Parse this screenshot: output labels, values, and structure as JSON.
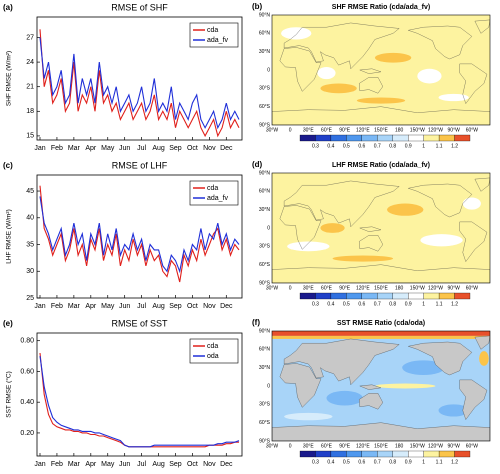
{
  "chart_data": [
    {
      "type": "line",
      "label": "(a)",
      "title": "RMSE of SHF",
      "ylabel": "SHF RMSE (W/m²)",
      "categories": [
        "Jan",
        null,
        null,
        null,
        "Feb",
        null,
        null,
        null,
        "Mar",
        null,
        null,
        null,
        "Apr",
        null,
        null,
        null,
        "May",
        null,
        null,
        null,
        "Jun",
        null,
        null,
        null,
        "Jul",
        null,
        null,
        null,
        "Aug",
        null,
        null,
        null,
        "Sep",
        null,
        null,
        null,
        "Oct",
        null,
        null,
        null,
        "Nov",
        null,
        null,
        null,
        "Dec",
        null,
        null,
        null
      ],
      "series": [
        {
          "name": "cda",
          "color": "#e0201b",
          "values": [
            28,
            21,
            23,
            19,
            20,
            22,
            18,
            19,
            24,
            18,
            20,
            19,
            21,
            18,
            23,
            19,
            20,
            18,
            19,
            17,
            18,
            19,
            17,
            18,
            19,
            17,
            18,
            20,
            17,
            18,
            17,
            19,
            16,
            18,
            17,
            16,
            17,
            18,
            16,
            15,
            16,
            17,
            15,
            16,
            18,
            16,
            17,
            16
          ]
        },
        {
          "name": "ada_fv",
          "color": "#1f2fd8",
          "values": [
            27,
            22,
            24,
            20,
            21,
            23,
            19,
            20,
            25,
            19,
            22,
            20,
            22,
            19,
            24,
            20,
            21,
            19,
            21,
            18,
            19,
            20,
            18,
            19,
            21,
            18,
            19,
            22,
            18,
            19,
            18,
            21,
            17,
            19,
            18,
            17,
            19,
            20,
            17,
            16,
            17,
            18,
            16,
            17,
            19,
            17,
            18,
            17
          ]
        }
      ],
      "ylim": [
        14.5,
        29.5
      ],
      "yticks": [
        15,
        18,
        21,
        24,
        27
      ],
      "legend": "upper right"
    },
    {
      "type": "map",
      "label": "(b)",
      "title": "SHF RMSE Ratio (cda/ada_fv)",
      "field_color": "#fdf3a0",
      "lat_labels": [
        "90°N",
        "60°N",
        "30°N",
        "0",
        "30°S",
        "60°S",
        "90°S"
      ],
      "lon_labels": [
        "30°W",
        "0",
        "30°E",
        "60°E",
        "90°E",
        "120°E",
        "150°E",
        "180",
        "150°W",
        "120°W",
        "90°W",
        "60°W"
      ],
      "colorbar": {
        "ticks": [
          0.3,
          0.4,
          0.5,
          0.6,
          0.7,
          0.8,
          0.9,
          1,
          1.1,
          1.2
        ],
        "colors": [
          "#1a1a8c",
          "#2040c8",
          "#3070e0",
          "#4f98ee",
          "#7ab8f5",
          "#a8d4f8",
          "#d6ecfb",
          "#ffffff",
          "#fdf3a0",
          "#fbc44a",
          "#e8502a"
        ]
      }
    },
    {
      "type": "line",
      "label": "(c)",
      "title": "RMSE of LHF",
      "ylabel": "LHF RMSE (W/m²)",
      "categories": [
        "Jan",
        null,
        null,
        null,
        "Feb",
        null,
        null,
        null,
        "Mar",
        null,
        null,
        null,
        "Apr",
        null,
        null,
        null,
        "May",
        null,
        null,
        null,
        "Jun",
        null,
        null,
        null,
        "Jul",
        null,
        null,
        null,
        "Aug",
        null,
        null,
        null,
        "Sep",
        null,
        null,
        null,
        "Oct",
        null,
        null,
        null,
        "Nov",
        null,
        null,
        null,
        "Dec",
        null,
        null,
        null
      ],
      "series": [
        {
          "name": "cda",
          "color": "#e0201b",
          "values": [
            46,
            38,
            36,
            33,
            35,
            37,
            32,
            34,
            38,
            33,
            35,
            31,
            36,
            34,
            38,
            32,
            35,
            33,
            37,
            31,
            34,
            32,
            36,
            33,
            35,
            31,
            34,
            32,
            33,
            30,
            29,
            32,
            31,
            28,
            33,
            31,
            34,
            32,
            36,
            33,
            35,
            37,
            38,
            34,
            36,
            33,
            35,
            34
          ]
        },
        {
          "name": "ada_fv",
          "color": "#1f2fd8",
          "values": [
            44,
            39,
            37,
            34,
            36,
            38,
            33,
            35,
            39,
            35,
            37,
            32,
            37,
            35,
            39,
            33,
            37,
            34,
            38,
            33,
            35,
            34,
            37,
            34,
            36,
            32,
            35,
            34,
            34,
            31,
            30,
            33,
            32,
            30,
            34,
            32,
            35,
            34,
            38,
            34,
            37,
            36,
            39,
            35,
            37,
            34,
            36,
            35
          ]
        }
      ],
      "ylim": [
        25,
        48
      ],
      "yticks": [
        25,
        30,
        35,
        40,
        45
      ],
      "legend": "upper right"
    },
    {
      "type": "map",
      "label": "(d)",
      "title": "LHF RMSE Ratio (cda/ada_fv)",
      "field_color": "#fdf3a0",
      "lat_labels": [
        "90°N",
        "60°N",
        "30°N",
        "0",
        "30°S",
        "60°S",
        "90°S"
      ],
      "lon_labels": [
        "30°W",
        "0",
        "30°E",
        "60°E",
        "90°E",
        "120°E",
        "150°E",
        "180",
        "150°W",
        "120°W",
        "90°W",
        "60°W"
      ],
      "colorbar": {
        "ticks": [
          0.3,
          0.4,
          0.5,
          0.6,
          0.7,
          0.8,
          0.9,
          1,
          1.1,
          1.2
        ],
        "colors": [
          "#1a1a8c",
          "#2040c8",
          "#3070e0",
          "#4f98ee",
          "#7ab8f5",
          "#a8d4f8",
          "#d6ecfb",
          "#ffffff",
          "#fdf3a0",
          "#fbc44a",
          "#e8502a"
        ]
      }
    },
    {
      "type": "line",
      "label": "(e)",
      "title": "RMSE of SST",
      "ylabel": "SST RMSE (°C)",
      "categories": [
        "Jan",
        null,
        null,
        null,
        "Feb",
        null,
        null,
        null,
        "Mar",
        null,
        null,
        null,
        "Apr",
        null,
        null,
        null,
        "May",
        null,
        null,
        null,
        "Jun",
        null,
        null,
        null,
        "Jul",
        null,
        null,
        null,
        "Aug",
        null,
        null,
        null,
        "Sep",
        null,
        null,
        null,
        "Oct",
        null,
        null,
        null,
        "Nov",
        null,
        null,
        null,
        "Dec",
        null,
        null,
        null
      ],
      "series": [
        {
          "name": "cda",
          "color": "#e0201b",
          "values": [
            0.72,
            0.45,
            0.32,
            0.26,
            0.24,
            0.23,
            0.22,
            0.22,
            0.21,
            0.21,
            0.2,
            0.2,
            0.19,
            0.19,
            0.18,
            0.18,
            0.17,
            0.16,
            0.15,
            0.14,
            0.12,
            0.11,
            0.11,
            0.11,
            0.11,
            0.11,
            0.11,
            0.11,
            0.11,
            0.11,
            0.11,
            0.11,
            0.11,
            0.11,
            0.11,
            0.11,
            0.11,
            0.11,
            0.11,
            0.11,
            0.12,
            0.12,
            0.12,
            0.12,
            0.13,
            0.13,
            0.14,
            0.14
          ]
        },
        {
          "name": "oda",
          "color": "#1f2fd8",
          "values": [
            0.7,
            0.5,
            0.38,
            0.3,
            0.27,
            0.25,
            0.24,
            0.23,
            0.22,
            0.22,
            0.21,
            0.21,
            0.21,
            0.2,
            0.2,
            0.19,
            0.18,
            0.17,
            0.16,
            0.15,
            0.12,
            0.11,
            0.11,
            0.11,
            0.11,
            0.11,
            0.11,
            0.12,
            0.12,
            0.12,
            0.12,
            0.12,
            0.12,
            0.12,
            0.12,
            0.12,
            0.12,
            0.12,
            0.12,
            0.12,
            0.12,
            0.12,
            0.13,
            0.13,
            0.14,
            0.14,
            0.14,
            0.15
          ]
        }
      ],
      "ylim": [
        0.05,
        0.85
      ],
      "yticks": [
        {
          "value": 0.2,
          "label": "0.20"
        },
        {
          "value": 0.4,
          "label": "0.40"
        },
        {
          "value": 0.6,
          "label": "0.60"
        },
        {
          "value": 0.8,
          "label": "0.80"
        }
      ],
      "legend": "upper right"
    },
    {
      "type": "map",
      "label": "(f)",
      "title": "SST RMSE Ratio (cda/oda)",
      "field_color": "#a8d4f8",
      "land_color": "#c8c8c8",
      "lat_labels": [
        "90°N",
        "60°N",
        "30°N",
        "0",
        "30°S",
        "60°S",
        "90°S"
      ],
      "lon_labels": [
        "30°W",
        "0",
        "30°E",
        "60°E",
        "90°E",
        "120°E",
        "150°E",
        "180",
        "150°W",
        "120°W",
        "90°W",
        "60°W"
      ],
      "colorbar": {
        "ticks": [
          0.3,
          0.4,
          0.5,
          0.6,
          0.7,
          0.8,
          0.9,
          1,
          1.1,
          1.2
        ],
        "colors": [
          "#1a1a8c",
          "#2040c8",
          "#3070e0",
          "#4f98ee",
          "#7ab8f5",
          "#a8d4f8",
          "#d6ecfb",
          "#ffffff",
          "#fdf3a0",
          "#fbc44a",
          "#e8502a"
        ]
      }
    }
  ]
}
